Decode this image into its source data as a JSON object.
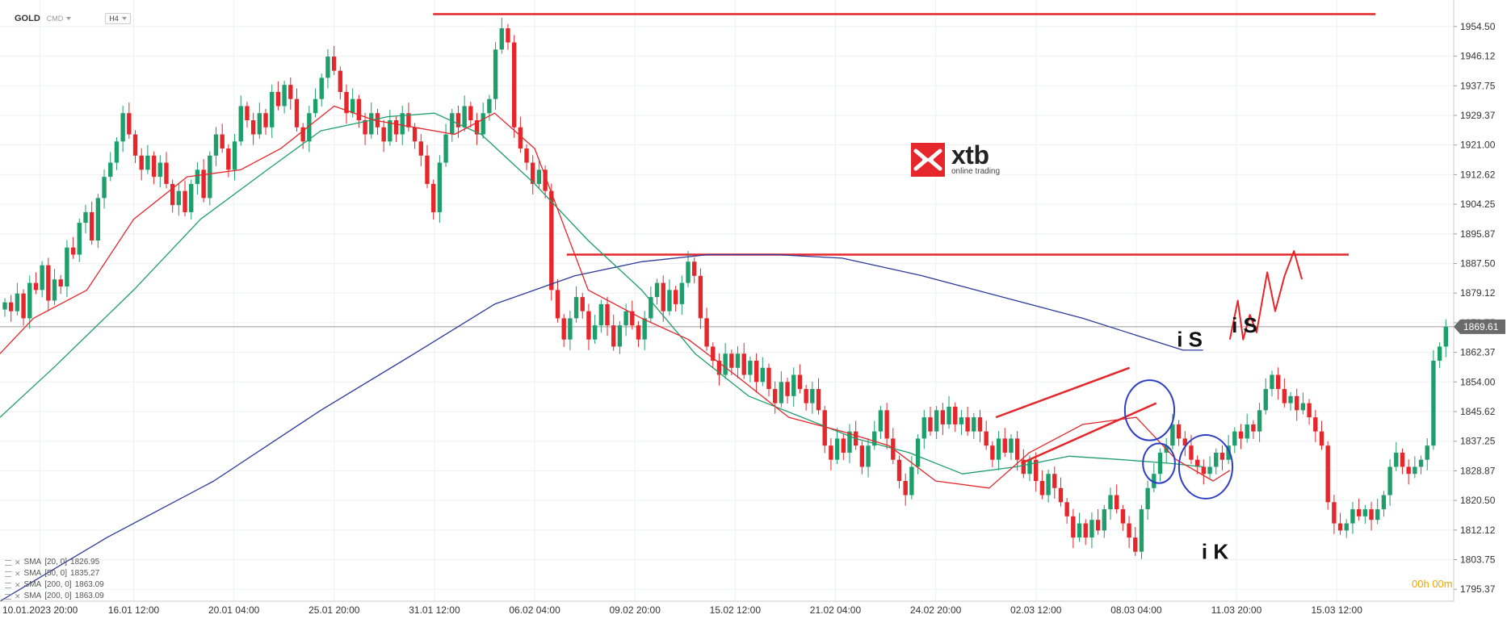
{
  "header": {
    "symbol": "GOLD",
    "market": "CMD",
    "timeframe": "H4"
  },
  "logo": {
    "brand": "xtb",
    "tagline": "online trading"
  },
  "timer": {
    "hours": "00",
    "h_suffix": "h",
    "minutes": "00",
    "m_suffix": "m"
  },
  "indicators": [
    {
      "name": "SMA",
      "params": "[20, 0]",
      "value": "1826.95",
      "color": "#e5262a"
    },
    {
      "name": "SMA",
      "params": "[50, 0]",
      "value": "1835.27",
      "color": "#1e9e6b"
    },
    {
      "name": "SMA",
      "params": "[200, 0]",
      "value": "1863.09",
      "color": "#2b3a9c"
    },
    {
      "name": "SMA",
      "params": "[200, 0]",
      "value": "1863.09",
      "color": "#2b3a9c"
    }
  ],
  "annotations": [
    {
      "text": "i S",
      "x": 1780,
      "y": 1864
    },
    {
      "text": "i K",
      "x": 1818,
      "y": 1804
    },
    {
      "text": "i S",
      "x": 1862,
      "y": 1868
    }
  ],
  "colors": {
    "up": "#1e9e6b",
    "down": "#e5262a",
    "resistance": "#e5262a",
    "circle": "#2c3fc4"
  },
  "chart_data": {
    "type": "candlestick",
    "title": "",
    "xlabel": "",
    "ylabel": "",
    "symbol": "GOLD",
    "timeframe": "H4",
    "ylim": [
      1792,
      1962
    ],
    "xlim": [
      0,
      2175
    ],
    "last_price": "1869.61",
    "last_price_value": 1869.61,
    "y_ticks": [
      "1954.50",
      "1946.12",
      "1937.75",
      "1929.37",
      "1921.00",
      "1912.62",
      "1904.25",
      "1895.87",
      "1887.50",
      "1879.12",
      "1870.75",
      "1862.37",
      "1854.00",
      "1845.62",
      "1837.25",
      "1828.87",
      "1820.50",
      "1812.12",
      "1803.75",
      "1795.37"
    ],
    "x_ticks": [
      {
        "label": "10.01.2023  20:00",
        "x": 60
      },
      {
        "label": "16.01  12:00",
        "x": 200
      },
      {
        "label": "20.01  04:00",
        "x": 350
      },
      {
        "label": "25.01  20:00",
        "x": 500
      },
      {
        "label": "31.01  12:00",
        "x": 650
      },
      {
        "label": "06.02  04:00",
        "x": 800
      },
      {
        "label": "09.02  20:00",
        "x": 950
      },
      {
        "label": "15.02  12:00",
        "x": 1100
      },
      {
        "label": "21.02  04:00",
        "x": 1250
      },
      {
        "label": "24.02  20:00",
        "x": 1400
      },
      {
        "label": "02.03  12:00",
        "x": 1550
      },
      {
        "label": "08.03  04:00",
        "x": 1700
      },
      {
        "label": "11.03  20:00",
        "x": 1850
      },
      {
        "label": "15.03  12:00",
        "x": 2000
      }
    ],
    "close": [
      1876.5,
      1874.0,
      1879.0,
      1872.0,
      1882.0,
      1880.0,
      1887.0,
      1877.0,
      1883.0,
      1881.0,
      1892.0,
      1890.0,
      1899.0,
      1902.0,
      1894.0,
      1906.0,
      1912.0,
      1916.0,
      1922.0,
      1930.0,
      1924.0,
      1918.0,
      1914.0,
      1918.0,
      1912.0,
      1916.0,
      1910.0,
      1904.0,
      1908.0,
      1902.0,
      1910.0,
      1914.0,
      1906.0,
      1918.0,
      1924.0,
      1920.0,
      1914.0,
      1922.0,
      1932.0,
      1928.0,
      1924.0,
      1930.0,
      1926.0,
      1936.0,
      1932.0,
      1938.0,
      1934.0,
      1926.0,
      1922.0,
      1930.0,
      1934.0,
      1940.0,
      1946.0,
      1942.0,
      1936.0,
      1930.0,
      1934.0,
      1928.0,
      1924.0,
      1930.0,
      1926.0,
      1922.0,
      1928.0,
      1924.0,
      1930.0,
      1926.0,
      1922.0,
      1918.0,
      1910.0,
      1902.0,
      1916.0,
      1924.0,
      1930.0,
      1926.0,
      1932.0,
      1928.0,
      1924.0,
      1930.0,
      1934.0,
      1948.0,
      1954.0,
      1950.0,
      1926.0,
      1920.0,
      1916.0,
      1910.0,
      1914.0,
      1908.0,
      1880.0,
      1872.0,
      1866.0,
      1872.0,
      1878.0,
      1874.0,
      1866.0,
      1870.0,
      1876.0,
      1870.0,
      1864.0,
      1870.0,
      1874.0,
      1870.0,
      1866.0,
      1872.0,
      1878.0,
      1882.0,
      1874.0,
      1880.0,
      1876.0,
      1882.0,
      1888.0,
      1884.0,
      1872.0,
      1864.0,
      1860.0,
      1856.0,
      1862.0,
      1858.0,
      1862.0,
      1856.0,
      1860.0,
      1854.0,
      1858.0,
      1852.0,
      1848.0,
      1854.0,
      1850.0,
      1856.0,
      1852.0,
      1848.0,
      1852.0,
      1846.0,
      1836.0,
      1832.0,
      1838.0,
      1834.0,
      1840.0,
      1836.0,
      1830.0,
      1836.0,
      1840.0,
      1846.0,
      1838.0,
      1832.0,
      1826.0,
      1822.0,
      1830.0,
      1838.0,
      1844.0,
      1840.0,
      1846.0,
      1842.0,
      1847.0,
      1842.0,
      1844.0,
      1840.0,
      1844.0,
      1840.0,
      1836.0,
      1832.0,
      1838.0,
      1834.0,
      1838.0,
      1832.0,
      1828.0,
      1832.0,
      1826.0,
      1822.0,
      1828.0,
      1824.0,
      1820.0,
      1816.0,
      1810.0,
      1814.0,
      1810.0,
      1815.0,
      1812.0,
      1818.0,
      1822.0,
      1818.0,
      1814.0,
      1810.0,
      1806.0,
      1818.0,
      1824.0,
      1828.0,
      1834.0,
      1836.0,
      1842.0,
      1838.0,
      1836.0,
      1832.0,
      1830.0,
      1828.0,
      1830.0,
      1834.0,
      1832.0,
      1836.0,
      1840.0,
      1838.0,
      1842.0,
      1840.0,
      1846.0,
      1852.0,
      1856.0,
      1852.0,
      1848.0,
      1850.0,
      1846.0,
      1848.0,
      1844.0,
      1840.0,
      1836.0,
      1820.0,
      1814.0,
      1812.0,
      1814.0,
      1818.0,
      1816.0,
      1818.0,
      1815.0,
      1818.0,
      1822.0,
      1830.0,
      1834.0,
      1830.0,
      1828.0,
      1830.0,
      1832.0,
      1836.0,
      1860.0,
      1864.0,
      1869.6
    ],
    "sma20": [
      [
        0,
        1862
      ],
      [
        50,
        1872
      ],
      [
        130,
        1880
      ],
      [
        200,
        1900
      ],
      [
        280,
        1912
      ],
      [
        360,
        1914
      ],
      [
        420,
        1920
      ],
      [
        500,
        1932
      ],
      [
        560,
        1928
      ],
      [
        620,
        1926
      ],
      [
        680,
        1924
      ],
      [
        740,
        1930
      ],
      [
        800,
        1920
      ],
      [
        880,
        1880
      ],
      [
        960,
        1872
      ],
      [
        1030,
        1866
      ],
      [
        1100,
        1856
      ],
      [
        1180,
        1844
      ],
      [
        1260,
        1840
      ],
      [
        1330,
        1836
      ],
      [
        1400,
        1826
      ],
      [
        1480,
        1824
      ],
      [
        1540,
        1834
      ],
      [
        1620,
        1842
      ],
      [
        1700,
        1844
      ],
      [
        1760,
        1832
      ],
      [
        1815,
        1826
      ],
      [
        1840,
        1829
      ]
    ],
    "sma50": [
      [
        0,
        1844
      ],
      [
        80,
        1858
      ],
      [
        200,
        1880
      ],
      [
        300,
        1900
      ],
      [
        400,
        1914
      ],
      [
        480,
        1925
      ],
      [
        580,
        1929
      ],
      [
        650,
        1930
      ],
      [
        720,
        1924
      ],
      [
        800,
        1910
      ],
      [
        880,
        1894
      ],
      [
        960,
        1880
      ],
      [
        1040,
        1862
      ],
      [
        1120,
        1850
      ],
      [
        1200,
        1844
      ],
      [
        1280,
        1838
      ],
      [
        1360,
        1834
      ],
      [
        1440,
        1828
      ],
      [
        1520,
        1830
      ],
      [
        1600,
        1833
      ],
      [
        1680,
        1832
      ],
      [
        1750,
        1831
      ],
      [
        1800,
        1830
      ]
    ],
    "sma200": [
      [
        0,
        1792
      ],
      [
        160,
        1810
      ],
      [
        320,
        1826
      ],
      [
        480,
        1846
      ],
      [
        620,
        1862
      ],
      [
        740,
        1876
      ],
      [
        860,
        1884
      ],
      [
        960,
        1888
      ],
      [
        1060,
        1890
      ],
      [
        1160,
        1890
      ],
      [
        1260,
        1889
      ],
      [
        1380,
        1884
      ],
      [
        1500,
        1878
      ],
      [
        1620,
        1872
      ],
      [
        1720,
        1866
      ],
      [
        1770,
        1863
      ],
      [
        1800,
        1863
      ]
    ],
    "levels": [
      {
        "y": 1958,
        "x1": 648,
        "x2": 2058
      },
      {
        "y": 1890,
        "x1": 848,
        "x2": 2018
      }
    ],
    "trend_lines": [
      [
        [
          1490,
          1844
        ],
        [
          1690,
          1858
        ]
      ],
      [
        [
          1528,
          1831
        ],
        [
          1730,
          1848
        ]
      ]
    ],
    "forecast_path": [
      [
        1840,
        1866
      ],
      [
        1852,
        1877
      ],
      [
        1860,
        1866
      ],
      [
        1870,
        1873
      ],
      [
        1880,
        1868
      ],
      [
        1896,
        1885
      ],
      [
        1908,
        1874
      ],
      [
        1922,
        1884
      ],
      [
        1936,
        1891
      ],
      [
        1948,
        1883
      ]
    ],
    "circles": [
      {
        "x": 1720,
        "y": 1846,
        "rx": 37,
        "ry": 8.5
      },
      {
        "x": 1734,
        "y": 1831,
        "rx": 24,
        "ry": 5.6
      },
      {
        "x": 1804,
        "y": 1830,
        "rx": 40,
        "ry": 9
      }
    ]
  }
}
